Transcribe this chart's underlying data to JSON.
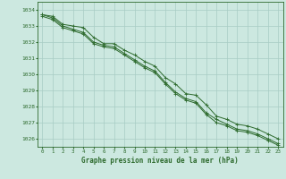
{
  "x": [
    0,
    1,
    2,
    3,
    4,
    5,
    6,
    7,
    8,
    9,
    10,
    11,
    12,
    13,
    14,
    15,
    16,
    17,
    18,
    19,
    20,
    21,
    22,
    23
  ],
  "series1": [
    1033.7,
    1033.6,
    1033.1,
    1033.0,
    1032.9,
    1032.3,
    1031.9,
    1031.9,
    1031.5,
    1031.2,
    1030.8,
    1030.5,
    1029.8,
    1029.4,
    1028.8,
    1028.7,
    1028.1,
    1027.4,
    1027.2,
    1026.9,
    1026.8,
    1026.6,
    1026.3,
    1026.0
  ],
  "series2": [
    1033.7,
    1033.5,
    1033.0,
    1032.8,
    1032.6,
    1032.0,
    1031.8,
    1031.7,
    1031.3,
    1030.9,
    1030.5,
    1030.2,
    1029.5,
    1028.9,
    1028.5,
    1028.3,
    1027.6,
    1027.2,
    1026.9,
    1026.6,
    1026.5,
    1026.3,
    1026.0,
    1025.7
  ],
  "series3": [
    1033.6,
    1033.4,
    1032.9,
    1032.7,
    1032.5,
    1031.9,
    1031.7,
    1031.6,
    1031.2,
    1030.8,
    1030.4,
    1030.1,
    1029.4,
    1028.8,
    1028.4,
    1028.2,
    1027.5,
    1027.0,
    1026.8,
    1026.5,
    1026.4,
    1026.2,
    1025.9,
    1025.6
  ],
  "ylim": [
    1025.5,
    1034.5
  ],
  "yticks": [
    1026,
    1027,
    1028,
    1029,
    1030,
    1031,
    1032,
    1033,
    1034
  ],
  "xticks": [
    0,
    1,
    2,
    3,
    4,
    5,
    6,
    7,
    8,
    9,
    10,
    11,
    12,
    13,
    14,
    15,
    16,
    17,
    18,
    19,
    20,
    21,
    22,
    23
  ],
  "xlabel": "Graphe pression niveau de la mer (hPa)",
  "line_color": "#2d6a2d",
  "bg_color": "#cce8e0",
  "grid_color": "#a8ccc4",
  "axis_color": "#2d6a2d",
  "label_color": "#2d6a2d",
  "marker": "+",
  "markersize": 3,
  "linewidth": 0.7
}
